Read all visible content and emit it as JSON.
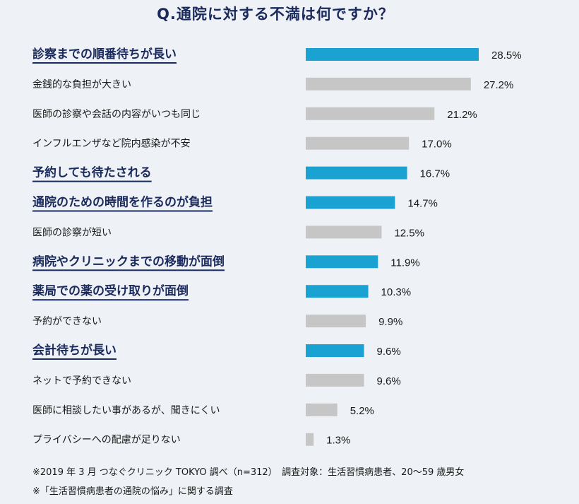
{
  "title": "Q.通院に対する不満は何ですか？",
  "chart_data": {
    "type": "bar",
    "orientation": "horizontal",
    "categories": [
      "診察までの順番待ちが長い",
      "金銭的な負担が大きい",
      "医師の診察や会話の内容がいつも同じ",
      "インフルエンザなど院内感染が不安",
      "予約しても待たされる",
      "通院のための時間を作るのが負担",
      "医師の診察が短い",
      "病院やクリニックまでの移動が面倒",
      "薬局での薬の受け取りが面倒",
      "予約ができない",
      "会計待ちが長い",
      "ネットで予約できない",
      "医師に相談したい事があるが、聞きにくい",
      "プライバシーへの配慮が足りない"
    ],
    "values": [
      28.5,
      27.2,
      21.2,
      17.0,
      16.7,
      14.7,
      12.5,
      11.9,
      10.3,
      9.9,
      9.6,
      9.6,
      5.2,
      1.3
    ],
    "value_labels": [
      "28.5%",
      "27.2%",
      "21.2%",
      "17.0%",
      "16.7%",
      "14.7%",
      "12.5%",
      "11.9%",
      "10.3%",
      "9.9%",
      "9.6%",
      "9.6%",
      "5.2%",
      "1.3%"
    ],
    "highlighted": [
      true,
      false,
      false,
      false,
      true,
      true,
      false,
      true,
      true,
      false,
      true,
      false,
      false,
      false
    ],
    "colors": {
      "highlight": "#1aa3d2",
      "normal": "#c6c6c6",
      "highlight_text": "#1b2a5c",
      "underline": "#1b2a5c"
    },
    "xlim": [
      0,
      28.5
    ],
    "grid": false
  },
  "footnotes": [
    "※2019 年 3 月  つなぐクリニック TOKYO 調べ（n=312）　調査対象：生活習慣病患者、20〜59 歳男女",
    "※「生活習慣病患者の通院の悩み」に関する調査"
  ]
}
